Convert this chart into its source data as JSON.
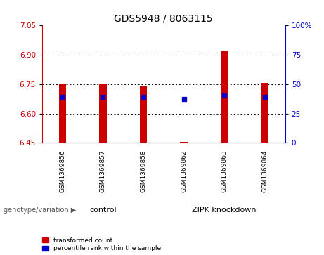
{
  "title": "GDS5948 / 8063115",
  "samples": [
    "GSM1369856",
    "GSM1369857",
    "GSM1369858",
    "GSM1369862",
    "GSM1369863",
    "GSM1369864"
  ],
  "red_values": [
    6.75,
    6.75,
    6.74,
    6.455,
    6.92,
    6.755
  ],
  "blue_values": [
    6.685,
    6.685,
    6.685,
    6.672,
    6.69,
    6.685
  ],
  "baseline": 6.45,
  "ylim": [
    6.45,
    7.05
  ],
  "yticks_left": [
    6.45,
    6.6,
    6.75,
    6.9,
    7.05
  ],
  "yticks_right": [
    0,
    25,
    50,
    75,
    100
  ],
  "red_color": "#cc0000",
  "blue_color": "#0000cc",
  "bar_width": 0.18,
  "blue_marker_size": 4,
  "group_label": "genotype/variation",
  "legend_red": "transformed count",
  "legend_blue": "percentile rank within the sample",
  "right_axis_color": "#0000cc",
  "left_axis_color": "#cc0000",
  "bg_color": "#ffffff",
  "gray_color": "#c8c8c8",
  "green_color": "#77dd77",
  "group1_name": "control",
  "group2_name": "ZIPK knockdown",
  "grid_yticks": [
    6.6,
    6.75,
    6.9
  ]
}
